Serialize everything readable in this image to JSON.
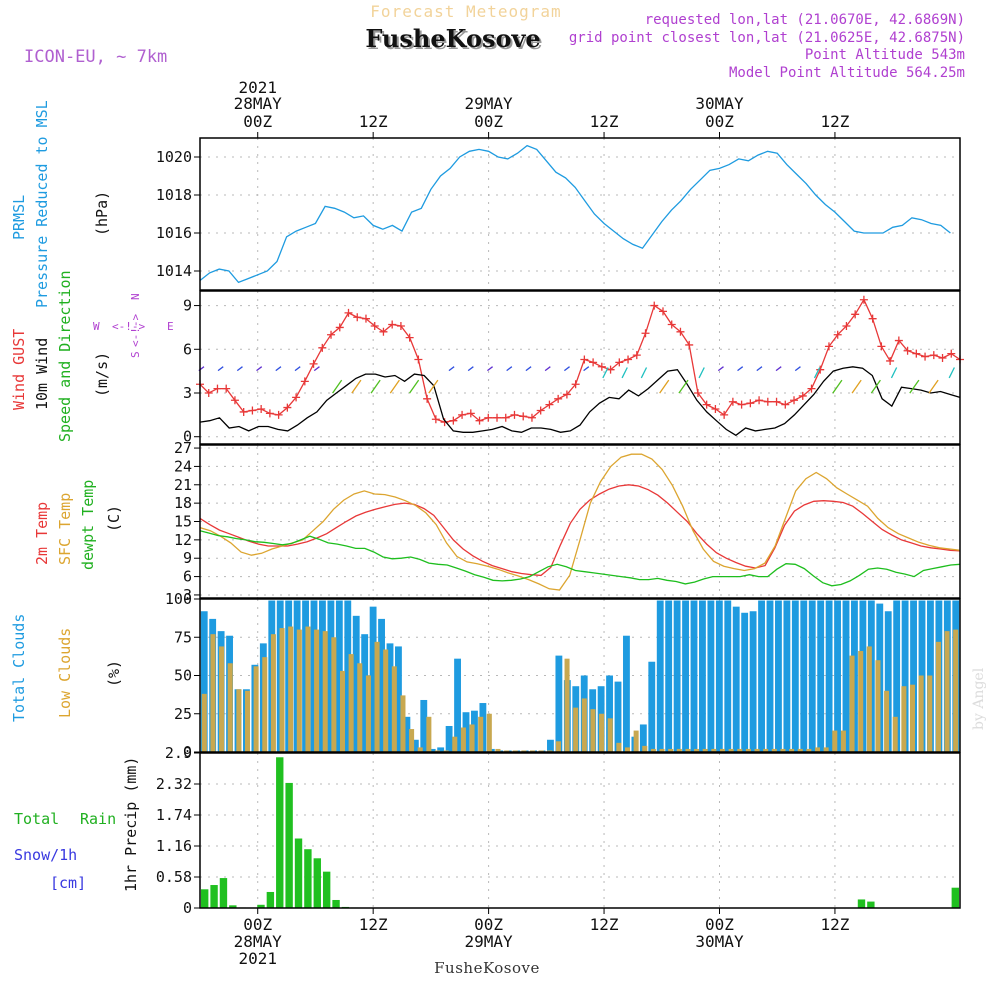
{
  "header": {
    "product": "Forecast Meteogram",
    "model": "ICON-EU, ~ 7km",
    "location": "FusheKosove",
    "requested": "requested lon,lat (21.0670E, 42.6869N)",
    "closest": "grid point closest lon,lat (21.0625E, 42.6875N)",
    "altitude": "Point Altitude 543m",
    "model_altitude": "Model Point Altitude 564.25m",
    "footer": "FusheKosove",
    "watermark": "by Angel"
  },
  "colors": {
    "pressure": "#1e9be0",
    "gust": "#e83838",
    "wind": "#000000",
    "t2m": "#e83838",
    "tsfc": "#dca530",
    "dewpt": "#1ebe1e",
    "total_clouds": "#1e9be0",
    "low_clouds": "#c8a850",
    "rain": "#20c020",
    "snow": "#3838e0",
    "purple": "#b040d0",
    "green_label": "#20b020",
    "blue_label": "#1e9be0"
  },
  "time_axis": {
    "top_labels": [
      {
        "h": 6,
        "l1": "28MAY",
        "l0": "2021",
        "l2": "00Z"
      },
      {
        "h": 18,
        "l2": "12Z"
      },
      {
        "h": 30,
        "l1": "29MAY",
        "l2": "00Z"
      },
      {
        "h": 42,
        "l2": "12Z"
      },
      {
        "h": 54,
        "l1": "30MAY",
        "l2": "00Z"
      },
      {
        "h": 66,
        "l2": "12Z"
      }
    ],
    "bottom_labels": [
      {
        "h": 6,
        "l1": "00Z",
        "l2": "28MAY",
        "l3": "2021"
      },
      {
        "h": 18,
        "l1": "12Z"
      },
      {
        "h": 30,
        "l1": "00Z",
        "l2": "29MAY"
      },
      {
        "h": 42,
        "l1": "12Z"
      },
      {
        "h": 54,
        "l1": "00Z",
        "l2": "30MAY"
      },
      {
        "h": 66,
        "l1": "12Z"
      }
    ]
  },
  "chart_data": [
    {
      "type": "line",
      "title": "PRMSL Pressure Reduced to MSL",
      "label_line1": "PRMSL",
      "label_line2": "Pressure Reduced to MSL",
      "ylabel": "(hPa)",
      "ylim": [
        1013,
        1021
      ],
      "yticks": [
        "1014",
        "1016",
        "1018",
        "1020"
      ],
      "ytick_values": [
        1014,
        1016,
        1018,
        1020
      ],
      "series": [
        {
          "name": "PRMSL",
          "values": [
            1013.5,
            1013.9,
            1014.1,
            1014.0,
            1013.4,
            1013.6,
            1013.8,
            1014.0,
            1014.5,
            1015.8,
            1016.1,
            1016.3,
            1016.5,
            1017.4,
            1017.3,
            1017.1,
            1016.8,
            1016.9,
            1016.4,
            1016.2,
            1016.4,
            1016.1,
            1017.1,
            1017.3,
            1018.3,
            1019.0,
            1019.4,
            1020.0,
            1020.3,
            1020.4,
            1020.3,
            1020.0,
            1019.9,
            1020.2,
            1020.6,
            1020.4,
            1019.8,
            1019.2,
            1018.9,
            1018.4,
            1017.7,
            1017.0,
            1016.5,
            1016.1,
            1015.7,
            1015.4,
            1015.2,
            1015.9,
            1016.6,
            1017.2,
            1017.7,
            1018.3,
            1018.8,
            1019.3,
            1019.4,
            1019.6,
            1019.9,
            1019.8,
            1020.1,
            1020.3,
            1020.2,
            1019.6,
            1019.1,
            1018.6,
            1018.0,
            1017.5,
            1017.1,
            1016.6,
            1016.1,
            1016.0,
            1016.0,
            1016.0,
            1016.3,
            1016.4,
            1016.8,
            1016.7,
            1016.5,
            1016.4,
            1016.0
          ]
        }
      ]
    },
    {
      "type": "line",
      "title": "Wind GUST 10m Wind Speed and Direction",
      "label_gust": "Wind GUST",
      "label_wind": "10m Wind",
      "label_dir": "Speed and Direction",
      "ylabel": "(m/s)",
      "compass": {
        "n": "N",
        "s": "S",
        "w": "W",
        "e": "E",
        "arrows": "<-!->"
      },
      "ylim": [
        -0.5,
        10
      ],
      "yticks": [
        "0",
        "3",
        "6",
        "9"
      ],
      "ytick_values": [
        0,
        3,
        6,
        9
      ],
      "series": [
        {
          "name": "Wind GUST",
          "values": [
            3.6,
            3.0,
            3.3,
            3.3,
            2.5,
            1.7,
            1.8,
            1.9,
            1.6,
            1.5,
            2.0,
            2.7,
            3.8,
            5.0,
            6.1,
            7.0,
            7.5,
            8.5,
            8.2,
            8.1,
            7.6,
            7.2,
            7.7,
            7.6,
            6.8,
            5.3,
            2.6,
            1.2,
            1.0,
            1.1,
            1.5,
            1.6,
            1.1,
            1.3,
            1.3,
            1.3,
            1.5,
            1.4,
            1.3,
            1.8,
            2.2,
            2.6,
            2.9,
            3.6,
            5.3,
            5.1,
            4.8,
            4.6,
            5.1,
            5.3,
            5.6,
            7.1,
            9.0,
            8.6,
            7.7,
            7.2,
            6.3,
            3.0,
            2.2,
            1.9,
            1.5,
            2.4,
            2.2,
            2.3,
            2.5,
            2.4,
            2.4,
            2.2,
            2.5,
            2.8,
            3.3,
            4.6,
            6.2,
            7.0,
            7.6,
            8.4,
            9.4,
            8.1,
            6.2,
            5.2,
            6.6,
            5.9,
            5.7,
            5.5,
            5.6,
            5.4,
            5.7,
            5.3
          ]
        },
        {
          "name": "10m Wind",
          "values": [
            1.0,
            1.1,
            1.3,
            0.6,
            0.7,
            0.4,
            0.7,
            0.7,
            0.5,
            0.4,
            0.8,
            1.3,
            1.7,
            2.5,
            3.0,
            3.5,
            4.0,
            4.3,
            4.3,
            4.1,
            4.2,
            3.8,
            4.3,
            4.2,
            3.5,
            1.2,
            0.4,
            0.3,
            0.3,
            0.4,
            0.5,
            0.7,
            0.4,
            0.3,
            0.6,
            0.6,
            0.5,
            0.3,
            0.4,
            0.8,
            1.7,
            2.3,
            2.7,
            2.6,
            3.2,
            2.8,
            3.3,
            3.9,
            4.5,
            4.6,
            3.6,
            2.5,
            1.7,
            1.1,
            0.5,
            0.1,
            0.6,
            0.4,
            0.5,
            0.6,
            0.9,
            1.5,
            2.2,
            2.9,
            3.8,
            4.5,
            4.7,
            4.8,
            4.7,
            4.2,
            2.6,
            2.1,
            3.4,
            3.3,
            3.2,
            3.0,
            3.1,
            2.9,
            2.7
          ]
        }
      ]
    },
    {
      "type": "line",
      "title": "2m Temp SFC Temp dewpt Temp",
      "label_t2m": "2m Temp",
      "label_tsfc": "SFC Temp",
      "label_dewpt": "dewpt Temp",
      "ylabel": "(C)",
      "ylim": [
        2.5,
        27.5
      ],
      "yticks": [
        "3",
        "6",
        "9",
        "12",
        "15",
        "18",
        "21",
        "24",
        "27"
      ],
      "ytick_values": [
        3,
        6,
        9,
        12,
        15,
        18,
        21,
        24,
        27
      ],
      "series": [
        {
          "name": "2m Temp",
          "values": [
            15.5,
            14.5,
            13.6,
            13.0,
            12.4,
            11.8,
            11.3,
            11.0,
            11.0,
            11.0,
            11.3,
            11.7,
            12.3,
            13.0,
            14.0,
            15.0,
            15.9,
            16.5,
            17.0,
            17.4,
            17.8,
            18.0,
            17.8,
            17.1,
            16.0,
            14.0,
            12.0,
            10.5,
            9.4,
            8.5,
            7.8,
            7.3,
            6.8,
            6.5,
            6.3,
            6.2,
            7.5,
            11.2,
            14.7,
            17.0,
            18.5,
            19.5,
            20.3,
            20.8,
            21.0,
            20.8,
            20.2,
            19.3,
            18.0,
            16.5,
            15.0,
            13.0,
            11.3,
            9.9,
            9.0,
            8.3,
            7.7,
            7.4,
            7.8,
            10.7,
            14.4,
            16.7,
            17.7,
            18.3,
            18.4,
            18.3,
            18.1,
            17.5,
            16.3,
            15.0,
            13.7,
            12.8,
            12.0,
            11.5,
            11.0,
            10.7,
            10.5,
            10.3,
            10.2
          ]
        },
        {
          "name": "SFC Temp",
          "values": [
            14.0,
            13.5,
            12.6,
            11.5,
            10.0,
            9.5,
            9.8,
            10.5,
            11.0,
            11.5,
            12.0,
            13.5,
            15.0,
            17.0,
            18.5,
            19.5,
            20.0,
            19.5,
            19.4,
            19.0,
            18.4,
            17.6,
            16.4,
            14.5,
            11.5,
            9.3,
            8.4,
            8.1,
            7.7,
            7.2,
            6.6,
            6.1,
            5.5,
            4.8,
            4.0,
            3.8,
            6.2,
            12.0,
            18.0,
            21.5,
            24.0,
            25.5,
            26.0,
            26.0,
            25.2,
            23.5,
            20.9,
            17.5,
            13.5,
            10.5,
            8.5,
            7.7,
            7.3,
            7.0,
            7.3,
            8.2,
            11.0,
            15.5,
            20.0,
            22.0,
            23.0,
            22.0,
            20.5,
            19.5,
            18.5,
            17.5,
            15.5,
            14.0,
            13.0,
            12.3,
            11.6,
            11.1,
            10.7,
            10.5,
            10.3
          ]
        },
        {
          "name": "dewpt Temp",
          "values": [
            13.5,
            13.1,
            12.7,
            12.5,
            12.2,
            12.0,
            11.7,
            11.6,
            11.4,
            11.2,
            11.4,
            12.0,
            12.6,
            12.1,
            11.5,
            11.3,
            11.0,
            10.6,
            10.6,
            10.0,
            9.2,
            8.9,
            9.0,
            9.2,
            8.8,
            8.2,
            8.0,
            7.9,
            7.4,
            6.9,
            6.3,
            5.9,
            5.4,
            5.3,
            5.4,
            5.6,
            6.0,
            6.8,
            7.6,
            8.0,
            7.6,
            7.0,
            6.8,
            6.6,
            6.4,
            6.2,
            6.0,
            5.8,
            5.5,
            5.5,
            5.7,
            5.4,
            5.2,
            4.8,
            5.1,
            5.6,
            6.0,
            6.0,
            6.0,
            6.0,
            6.3,
            6.0,
            6.0,
            7.2,
            8.1,
            8.0,
            7.3,
            6.1,
            5.0,
            4.5,
            4.7,
            5.3,
            6.2,
            7.2,
            7.4,
            7.2,
            6.7,
            6.4,
            6.0,
            7.0,
            7.3,
            7.6,
            7.9,
            8.0
          ]
        }
      ]
    },
    {
      "type": "bar",
      "title": "Total Clouds Low Clouds",
      "label_total": "Total Clouds",
      "label_low": "Low Clouds",
      "ylabel": "(%)",
      "ylim": [
        0,
        100
      ],
      "yticks": [
        "0",
        "25",
        "50",
        "75",
        "100"
      ],
      "ytick_values": [
        0,
        25,
        50,
        75,
        100
      ],
      "series": [
        {
          "name": "Total Clouds",
          "values": [
            92,
            87,
            79,
            76,
            41,
            41,
            57,
            71,
            99,
            99,
            99,
            99,
            99,
            99,
            99,
            99,
            99,
            99,
            89,
            77,
            95,
            87,
            71,
            69,
            23,
            8,
            34,
            2,
            3,
            17,
            61,
            26,
            27,
            32,
            2,
            1,
            1,
            1,
            1,
            1,
            1,
            8,
            63,
            47,
            43,
            50,
            41,
            43,
            50,
            46,
            76,
            10,
            18,
            59,
            99,
            99,
            99,
            99,
            99,
            99,
            99,
            99,
            99,
            95,
            91,
            92,
            99,
            99,
            99,
            99,
            99,
            99,
            99,
            99,
            99,
            99,
            99,
            99,
            99,
            99,
            97,
            92,
            99,
            99,
            99,
            99,
            99,
            99,
            99,
            99
          ]
        },
        {
          "name": "Low Clouds",
          "values": [
            38,
            77,
            69,
            58,
            41,
            40,
            56,
            62,
            77,
            81,
            82,
            80,
            82,
            80,
            79,
            75,
            53,
            64,
            58,
            50,
            72,
            67,
            56,
            37,
            15,
            3,
            23,
            1,
            1,
            10,
            16,
            18,
            23,
            25,
            2,
            1,
            1,
            1,
            1,
            1,
            1,
            7,
            61,
            29,
            35,
            28,
            25,
            22,
            6,
            3,
            14,
            4,
            2,
            2,
            2,
            2,
            2,
            2,
            2,
            2,
            2,
            2,
            2,
            2,
            2,
            2,
            2,
            2,
            2,
            2,
            2,
            3,
            3,
            14,
            14,
            63,
            66,
            69,
            60,
            40,
            23,
            43,
            44,
            50,
            50,
            72,
            79,
            80
          ]
        }
      ]
    },
    {
      "type": "bar",
      "title": "Total Rain Snow/1h",
      "label_total": "Total",
      "label_rain": "Rain",
      "label_snow": "Snow/1h",
      "label_cm": "[cm]",
      "ylabel": "1hr Precip (mm)",
      "ylim": [
        0,
        2.9
      ],
      "yticks": [
        "0",
        "0.58",
        "1.16",
        "1.74",
        "2.32",
        "2.9"
      ],
      "ytick_values": [
        0,
        0.58,
        1.16,
        1.74,
        2.32,
        2.9
      ],
      "series": [
        {
          "name": "Rain",
          "values": [
            0.35,
            0.43,
            0.56,
            0.05,
            0.01,
            0,
            0.06,
            0.3,
            2.82,
            2.34,
            1.3,
            1.1,
            0.93,
            0.68,
            0.15,
            0.02,
            0.01,
            0,
            0,
            0,
            0,
            0,
            0,
            0,
            0,
            0,
            0,
            0,
            0,
            0,
            0,
            0,
            0,
            0,
            0,
            0,
            0,
            0,
            0,
            0,
            0,
            0,
            0,
            0,
            0,
            0,
            0,
            0,
            0,
            0,
            0,
            0,
            0,
            0,
            0,
            0,
            0,
            0,
            0,
            0,
            0,
            0,
            0,
            0,
            0,
            0,
            0,
            0,
            0,
            0,
            0.16,
            0.12,
            0,
            0,
            0,
            0,
            0,
            0,
            0,
            0,
            0.38
          ]
        },
        {
          "name": "Snow",
          "values": [
            0,
            0,
            0,
            0,
            0,
            0,
            0,
            0,
            0,
            0,
            0,
            0,
            0,
            0,
            0,
            0,
            0,
            0,
            0,
            0,
            0,
            0,
            0,
            0,
            0,
            0,
            0,
            0,
            0,
            0,
            0,
            0,
            0,
            0,
            0,
            0,
            0,
            0,
            0,
            0,
            0,
            0,
            0,
            0,
            0,
            0,
            0,
            0,
            0,
            0,
            0,
            0,
            0,
            0,
            0,
            0,
            0,
            0,
            0,
            0,
            0,
            0,
            0,
            0,
            0,
            0,
            0,
            0,
            0,
            0,
            0,
            0,
            0,
            0,
            0,
            0,
            0,
            0,
            0,
            0
          ]
        }
      ]
    }
  ]
}
